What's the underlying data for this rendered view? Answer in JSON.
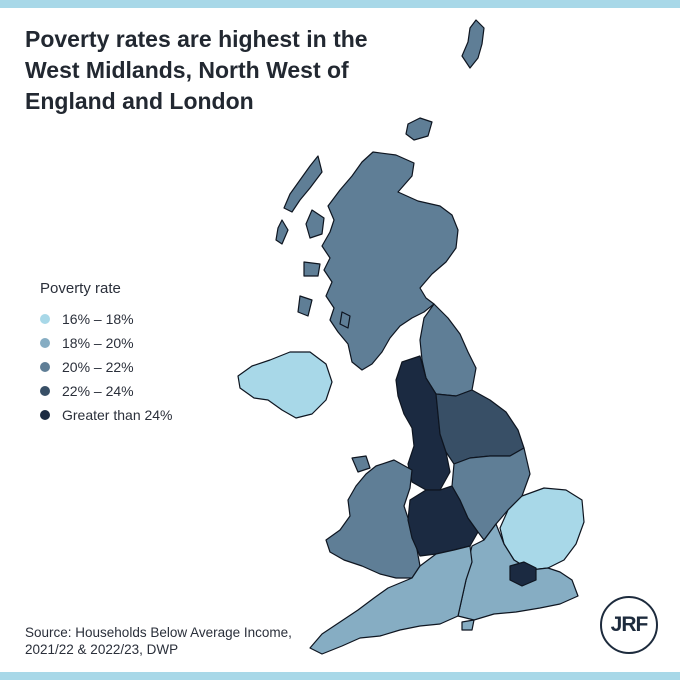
{
  "title": "Poverty rates are highest in the West Midlands, North West of England and London",
  "legend": {
    "title": "Poverty rate",
    "items": [
      {
        "label": "16% – 18%",
        "color": "#a8d8e8"
      },
      {
        "label": "18% – 20%",
        "color": "#86adc3"
      },
      {
        "label": "20% – 22%",
        "color": "#5f7e96"
      },
      {
        "label": "22% – 24%",
        "color": "#384f66"
      },
      {
        "label": "Greater than 24%",
        "color": "#1b2a41"
      }
    ]
  },
  "source": "Source: Households Below Average Income, 2021/22 & 2022/23, DWP",
  "logo_text": "JRF",
  "colors": {
    "accent_band": "#a8d8e8"
  },
  "map": {
    "regions": [
      {
        "id": "scotland",
        "band": "20% – 22%"
      },
      {
        "id": "northern-ireland",
        "band": "16% – 18%"
      },
      {
        "id": "north-east",
        "band": "20% – 22%"
      },
      {
        "id": "north-west",
        "band": "Greater than 24%"
      },
      {
        "id": "yorkshire-and-the-humber",
        "band": "22% – 24%"
      },
      {
        "id": "wales",
        "band": "20% – 22%"
      },
      {
        "id": "west-midlands",
        "band": "Greater than 24%"
      },
      {
        "id": "east-midlands",
        "band": "20% – 22%"
      },
      {
        "id": "east-of-england",
        "band": "16% – 18%"
      },
      {
        "id": "london",
        "band": "Greater than 24%"
      },
      {
        "id": "south-east",
        "band": "18% – 20%"
      },
      {
        "id": "south-west",
        "band": "18% – 20%"
      }
    ]
  }
}
